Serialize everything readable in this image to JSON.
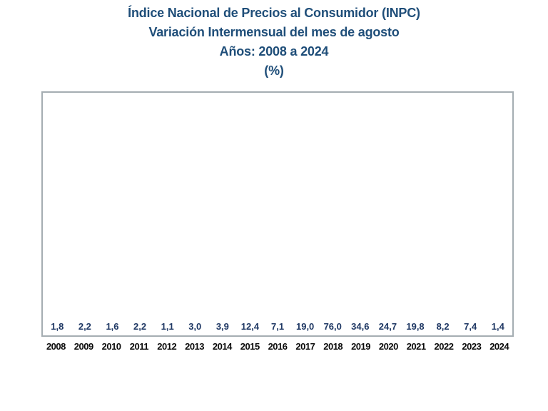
{
  "title": {
    "line1": "Índice Nacional de Precios al Consumidor (INPC)",
    "line2": "Variación Intermensual del mes de agosto",
    "line3": "Años: 2008 a 2024",
    "line4": "(%)"
  },
  "colors": {
    "bar": "#3E699C",
    "title_text": "#1F4E79",
    "value_label": "#1F3864",
    "year_label": "#0B0B0B",
    "frame_border": "#A5ADB2"
  },
  "chart_data": {
    "type": "bar",
    "title": "Índice Nacional de Precios al Consumidor (INPC) — Variación Intermensual del mes de agosto — Años: 2008 a 2024 (%)",
    "categories": [
      "2008",
      "2009",
      "2010",
      "2011",
      "2012",
      "2013",
      "2014",
      "2015",
      "2016",
      "2017",
      "2018",
      "2019",
      "2020",
      "2021",
      "2022",
      "2023",
      "2024"
    ],
    "values": [
      1.8,
      2.2,
      1.6,
      2.2,
      1.1,
      3.0,
      3.9,
      12.4,
      7.1,
      19.0,
      76.0,
      34.6,
      24.7,
      19.8,
      8.2,
      7.4,
      1.4
    ],
    "value_labels": [
      "1,8",
      "2,2",
      "1,6",
      "2,2",
      "1,1",
      "3,0",
      "3,9",
      "12,4",
      "7,1",
      "19,0",
      "76,0",
      "34,6",
      "24,7",
      "19,8",
      "8,2",
      "7,4",
      "1,4"
    ],
    "xlabel": "",
    "ylabel": "",
    "ylim": [
      0,
      92
    ],
    "grid": false,
    "legend": false,
    "data_labels": true,
    "decimal_separator": ","
  }
}
